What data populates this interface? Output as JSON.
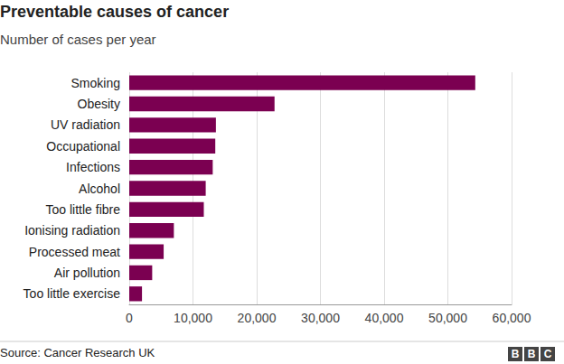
{
  "chart_data": {
    "type": "bar",
    "title": "Preventable causes of cancer",
    "subtitle": "Number of cases per year",
    "orientation": "horizontal",
    "categories": [
      "Smoking",
      "Obesity",
      "UV radiation",
      "Occupational",
      "Infections",
      "Alcohol",
      "Too little fibre",
      "Ionising radiation",
      "Processed meat",
      "Air pollution",
      "Too little exercise"
    ],
    "values": [
      54300,
      22800,
      13600,
      13500,
      13100,
      12000,
      11700,
      7000,
      5400,
      3600,
      2000
    ],
    "color": "#7b0051",
    "xlim": [
      0,
      60000
    ],
    "xticks": [
      0,
      {
        "value": 10000,
        "label": "10,000"
      },
      {
        "value": 20000,
        "label": "20,000"
      },
      {
        "value": 30000,
        "label": "30,000"
      },
      {
        "value": 40000,
        "label": "40,000"
      },
      {
        "value": 50000,
        "label": "50,000"
      },
      {
        "value": 60000,
        "label": "60,000"
      }
    ],
    "grid": true,
    "source": "Source: Cancer Research UK",
    "credit": "BBC"
  }
}
